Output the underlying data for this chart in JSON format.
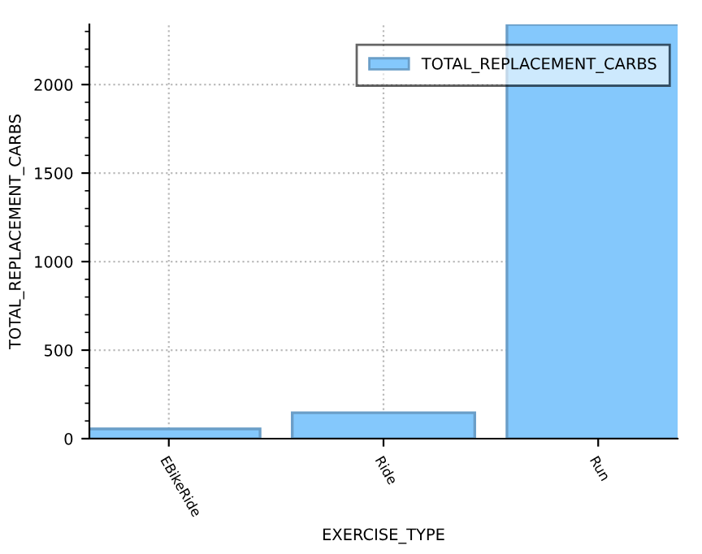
{
  "chart_data": {
    "type": "bar",
    "xlabel": "EXERCISE_TYPE",
    "ylabel": "TOTAL_REPLACEMENT_CARBS",
    "categories": [
      "EBikeRide",
      "Ride",
      "Run"
    ],
    "series": [
      {
        "name": "TOTAL_REPLACEMENT_CARBS",
        "color": "#84c8fc",
        "values": [
          55,
          146,
          2340
        ]
      }
    ],
    "ylim": [
      0,
      2340
    ],
    "yticks": [
      0,
      500,
      1000,
      1500,
      2000
    ],
    "grid": true,
    "legend": "top right"
  }
}
